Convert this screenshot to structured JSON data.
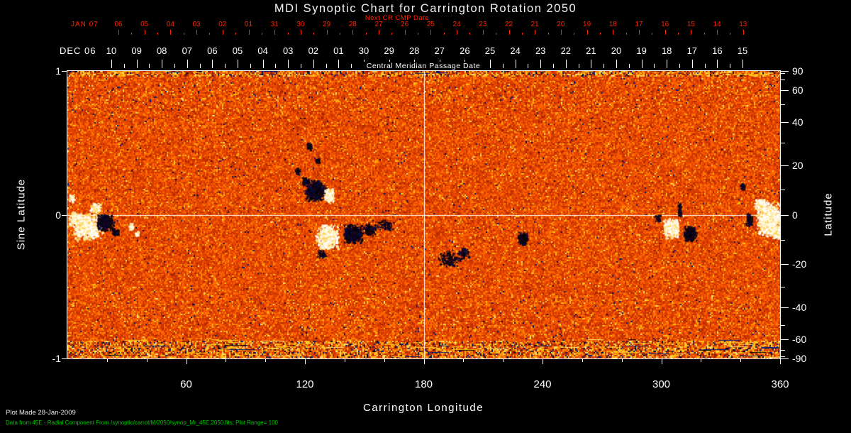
{
  "colors": {
    "bg": "#000000",
    "axis": "#ffffff",
    "red": "#ff2200",
    "green": "#00c800",
    "map_base": "#e04800",
    "grid_line": "#ffffff"
  },
  "chart_data": {
    "type": "heatmap",
    "title": "MDI Synoptic Chart for Carrington Rotation 2050",
    "map_description": "Radial magnetic field synoptic map: orange-red mottled quiet-sun noise; white blobs = positive polarity, dark blobs = negative polarity; noisy yellow/blue speckle bands at the polar (top/bottom) edges",
    "plot_range_gauss": 100,
    "top_axes": {
      "next_cr_label": "Next CR CMP Date",
      "next_cr": {
        "month": "JAN 07",
        "days": [
          "06",
          "05",
          "04",
          "03",
          "02",
          "01",
          "31",
          "30",
          "29",
          "28",
          "27",
          "26",
          "25",
          "24",
          "23",
          "22",
          "21",
          "20",
          "19",
          "18",
          "17",
          "16",
          "15",
          "14",
          "13"
        ]
      },
      "cmp": {
        "month": "DEC 06",
        "days": [
          "10",
          "09",
          "08",
          "07",
          "06",
          "05",
          "04",
          "03",
          "02",
          "01",
          "30",
          "29",
          "28",
          "27",
          "26",
          "25",
          "24",
          "23",
          "22",
          "21",
          "20",
          "19",
          "18",
          "17",
          "16",
          "15"
        ]
      },
      "cmp_axis_label": "Central Meridian Passage Date"
    },
    "axes": {
      "left_label": "Sine Latitude",
      "left_tick_values": [
        1,
        0,
        -1
      ],
      "right_label": "Latitude",
      "right_tick_values": [
        90,
        60,
        40,
        20,
        0,
        -20,
        -40,
        -60,
        -90
      ],
      "right_minor_tick_values": [
        80,
        70,
        50,
        30,
        10,
        -10,
        -30,
        -50,
        -70,
        -80
      ],
      "bottom_label": "Carrington Longitude",
      "bottom_tick_values": [
        60,
        120,
        180,
        240,
        300,
        360
      ],
      "bottom_minor_step": 20,
      "x_range": [
        0,
        360
      ],
      "y_range_sine_latitude": [
        -1,
        1
      ]
    },
    "grid": {
      "horizontal_at_sine_latitude": 0,
      "vertical_at_longitude": 180,
      "color": "#ffffff"
    },
    "noise_palette": {
      "body": [
        {
          "t": 0.004,
          "c": "#001d7a"
        },
        {
          "t": 0.007,
          "c": "#12002e"
        },
        {
          "t": 0.037,
          "c": "#ffc21a"
        },
        {
          "t": 0.1,
          "c": "#ff9000"
        },
        {
          "t": 0.34,
          "c": "#ff6400"
        },
        {
          "t": 0.6,
          "c": "#ea4a00"
        },
        {
          "t": 0.82,
          "c": "#d83c00"
        },
        {
          "t": 0.95,
          "c": "#c33000"
        },
        {
          "t": 0.985,
          "c": "#a82500"
        },
        {
          "t": 0.995,
          "c": "#8f1c00"
        },
        {
          "t": 1.01,
          "c": "#ffe37a"
        }
      ],
      "polar": [
        {
          "t": 0.01,
          "c": "#001d7a"
        },
        {
          "t": 0.014,
          "c": "#12002e"
        },
        {
          "t": 0.06,
          "c": "#ffc21a"
        },
        {
          "t": 0.13,
          "c": "#ff9000"
        },
        {
          "t": 0.36,
          "c": "#ff6400"
        },
        {
          "t": 0.62,
          "c": "#ea4a00"
        },
        {
          "t": 0.84,
          "c": "#d03600"
        },
        {
          "t": 0.95,
          "c": "#c33000"
        },
        {
          "t": 0.99,
          "c": "#a32300"
        },
        {
          "t": 1.01,
          "c": "#ffe37a"
        }
      ],
      "edge": [
        {
          "t": 0.05,
          "c": "#001d7a"
        },
        {
          "t": 0.08,
          "c": "#000000"
        },
        {
          "t": 0.26,
          "c": "#ffc21a"
        },
        {
          "t": 0.34,
          "c": "#ffe37a"
        },
        {
          "t": 0.5,
          "c": "#ff8c00"
        },
        {
          "t": 0.72,
          "c": "#e84a00"
        },
        {
          "t": 0.9,
          "c": "#c93000"
        },
        {
          "t": 1.01,
          "c": "#8f1c00"
        }
      ]
    },
    "polarity_colors": {
      "white": [
        "#ffffff",
        "#fff8dc",
        "#ffeaa6",
        "#ffd24d",
        "#fefefe"
      ],
      "black": [
        "#000000",
        "#06001e",
        "#160030",
        "#001040",
        "#1c0a06"
      ]
    },
    "core_colors": {
      "white": "#fffdf2",
      "black": "#03000f"
    },
    "active_regions": [
      {
        "region": "AR-lon10-S5",
        "blobs": [
          {
            "lon": 10,
            "slat": -0.08,
            "rlon": 7.5,
            "rslat": 0.1,
            "pol": "white",
            "n": 650,
            "core": true
          },
          {
            "lon": 4,
            "slat": -0.03,
            "rlon": 3.5,
            "rslat": 0.06,
            "pol": "white",
            "n": 200
          },
          {
            "lon": 19,
            "slat": -0.05,
            "rlon": 4.5,
            "rslat": 0.06,
            "pol": "black",
            "n": 380,
            "core": true
          },
          {
            "lon": 14,
            "slat": 0.05,
            "rlon": 3,
            "rslat": 0.035,
            "pol": "white",
            "n": 120
          },
          {
            "lon": 2,
            "slat": 0.12,
            "rlon": 1.5,
            "rslat": 0.03,
            "pol": "white",
            "n": 60
          },
          {
            "lon": 24,
            "slat": -0.12,
            "rlon": 2,
            "rslat": 0.03,
            "pol": "black",
            "n": 60
          },
          {
            "lon": 32,
            "slat": -0.08,
            "rlon": 1.6,
            "rslat": 0.025,
            "pol": "white",
            "n": 60
          },
          {
            "lon": 35,
            "slat": -0.13,
            "rlon": 1.2,
            "rslat": 0.02,
            "pol": "white",
            "n": 35
          }
        ]
      },
      {
        "region": "AR-lon125-N10",
        "blobs": [
          {
            "lon": 125,
            "slat": 0.17,
            "rlon": 5.5,
            "rslat": 0.075,
            "pol": "black",
            "n": 500,
            "core": true
          },
          {
            "lon": 132,
            "slat": 0.14,
            "rlon": 2.6,
            "rslat": 0.05,
            "pol": "white",
            "n": 260,
            "core": true
          },
          {
            "lon": 120,
            "slat": 0.24,
            "rlon": 1.8,
            "rslat": 0.03,
            "pol": "black",
            "n": 70
          },
          {
            "lon": 122,
            "slat": 0.48,
            "rlon": 1.6,
            "rslat": 0.03,
            "pol": "black",
            "n": 45
          },
          {
            "lon": 126,
            "slat": 0.38,
            "rlon": 1.2,
            "rslat": 0.02,
            "pol": "black",
            "n": 30
          },
          {
            "lon": 116,
            "slat": 0.31,
            "rlon": 1.4,
            "rslat": 0.025,
            "pol": "black",
            "n": 35
          }
        ]
      },
      {
        "region": "AR-lon135-S8",
        "blobs": [
          {
            "lon": 131,
            "slat": -0.15,
            "rlon": 6,
            "rslat": 0.09,
            "pol": "white",
            "n": 600,
            "core": true
          },
          {
            "lon": 144,
            "slat": -0.13,
            "rlon": 5,
            "rslat": 0.07,
            "pol": "black",
            "n": 480,
            "core": true
          },
          {
            "lon": 152,
            "slat": -0.1,
            "rlon": 4,
            "rslat": 0.05,
            "pol": "black",
            "n": 110
          },
          {
            "lon": 160,
            "slat": -0.07,
            "rlon": 5,
            "rslat": 0.04,
            "pol": "black",
            "n": 70
          },
          {
            "lon": 128,
            "slat": -0.27,
            "rlon": 2.2,
            "rslat": 0.03,
            "pol": "black",
            "n": 45
          }
        ]
      },
      {
        "region": "speckle-lon193-S18",
        "blobs": [
          {
            "lon": 193,
            "slat": -0.3,
            "rlon": 6,
            "rslat": 0.06,
            "pol": "black",
            "n": 130
          },
          {
            "lon": 200,
            "slat": -0.26,
            "rlon": 3,
            "rslat": 0.04,
            "pol": "black",
            "n": 55
          }
        ]
      },
      {
        "region": "AR-lon230-S9",
        "blobs": [
          {
            "lon": 230,
            "slat": -0.16,
            "rlon": 2.8,
            "rslat": 0.045,
            "pol": "black",
            "n": 170,
            "core": true
          }
        ]
      },
      {
        "region": "AR-lon308-S6",
        "blobs": [
          {
            "lon": 305,
            "slat": -0.09,
            "rlon": 4.5,
            "rslat": 0.07,
            "pol": "white",
            "n": 420,
            "core": true
          },
          {
            "lon": 314,
            "slat": -0.13,
            "rlon": 3.5,
            "rslat": 0.055,
            "pol": "black",
            "n": 300,
            "core": true
          },
          {
            "lon": 309,
            "slat": 0.04,
            "rlon": 1.0,
            "rslat": 0.06,
            "pol": "black",
            "n": 70
          },
          {
            "lon": 298,
            "slat": -0.02,
            "rlon": 1.8,
            "rslat": 0.03,
            "pol": "black",
            "n": 40
          }
        ]
      },
      {
        "region": "AR-lon353-S2",
        "blobs": [
          {
            "lon": 354,
            "slat": -0.03,
            "rlon": 6.5,
            "rslat": 0.12,
            "pol": "white",
            "n": 900,
            "core": true
          },
          {
            "lon": 350,
            "slat": 0.07,
            "rlon": 3,
            "rslat": 0.05,
            "pol": "white",
            "n": 180
          },
          {
            "lon": 358,
            "slat": -0.12,
            "rlon": 3,
            "rslat": 0.05,
            "pol": "white",
            "n": 200
          },
          {
            "lon": 344,
            "slat": -0.03,
            "rlon": 2,
            "rslat": 0.05,
            "pol": "black",
            "n": 90
          },
          {
            "lon": 341,
            "slat": 0.2,
            "rlon": 1.4,
            "rslat": 0.025,
            "pol": "black",
            "n": 35
          }
        ]
      }
    ],
    "footer_note1": "Plot Made 28-Jan-2009",
    "footer_note2": "Data from 45E - Radial Component From /synoptic/carrot/M/2050/synop_Mr_45E.2050.fits; Plot Range= 100"
  }
}
